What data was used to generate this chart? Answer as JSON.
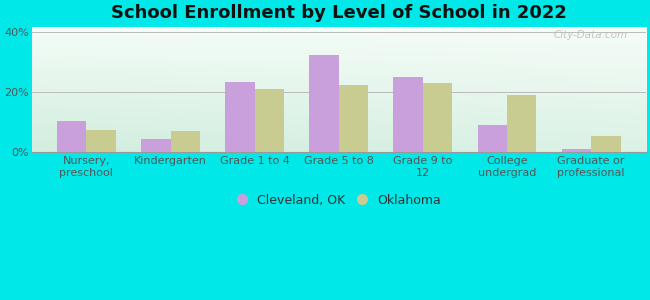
{
  "title": "School Enrollment by Level of School in 2022",
  "categories": [
    "Nursery,\npreschool",
    "Kindergarten",
    "Grade 1 to 4",
    "Grade 5 to 8",
    "Grade 9 to\n12",
    "College\nundergrad",
    "Graduate or\nprofessional"
  ],
  "cleveland_values": [
    10.5,
    4.5,
    23.5,
    32.5,
    25.0,
    9.0,
    1.0
  ],
  "oklahoma_values": [
    7.5,
    7.0,
    21.0,
    22.5,
    23.0,
    19.0,
    5.5
  ],
  "cleveland_color": "#c9a0dc",
  "oklahoma_color": "#c8cc90",
  "background_color": "#00e8e8",
  "grad_color_topleft": "#c8ecd4",
  "grad_color_topright": "#f0faf5",
  "grad_color_bottomleft": "#c8ecd4",
  "grad_color_bottomright": "#f8fffb",
  "ylim": [
    0,
    42
  ],
  "yticks": [
    0,
    20,
    40
  ],
  "ytick_labels": [
    "0%",
    "20%",
    "40%"
  ],
  "legend_labels": [
    "Cleveland, OK",
    "Oklahoma"
  ],
  "bar_width": 0.35,
  "title_fontsize": 13,
  "tick_fontsize": 8,
  "legend_fontsize": 9,
  "watermark": "City-Data.com"
}
